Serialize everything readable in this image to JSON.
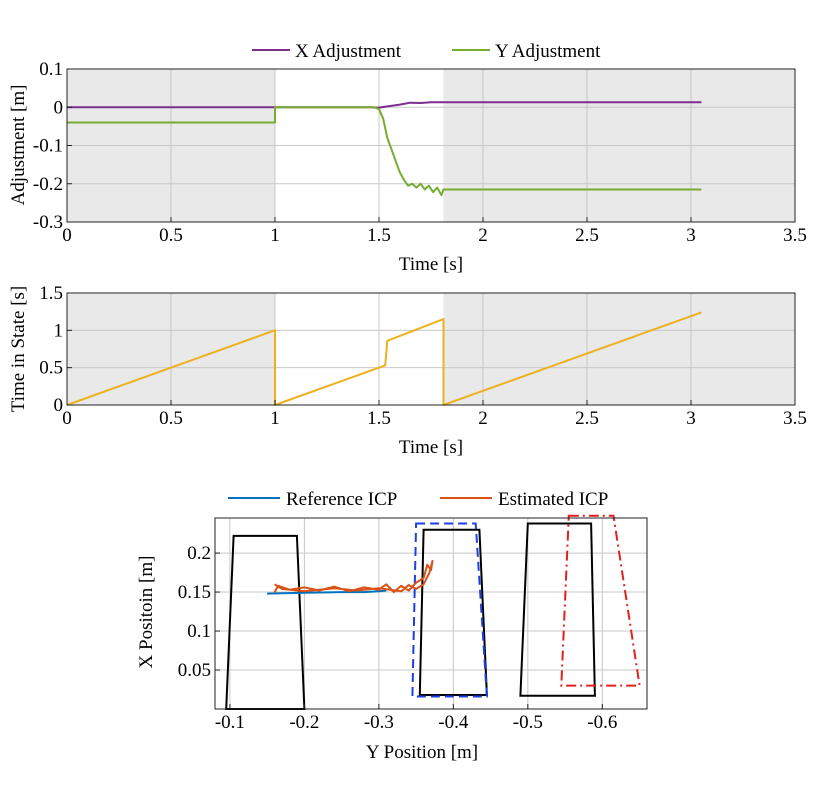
{
  "chart_data": [
    {
      "type": "line",
      "id": "adjustment",
      "xlabel": "Time [s]",
      "ylabel": "Adjustment [m]",
      "xlim": [
        0,
        3.5
      ],
      "ylim": [
        -0.3,
        0.1
      ],
      "xticks": [
        0,
        0.5,
        1,
        1.5,
        2,
        2.5,
        3,
        3.5
      ],
      "xtick_labels": [
        "0",
        "0.5",
        "1",
        "1.5",
        "2",
        "2.5",
        "3",
        "3.5"
      ],
      "yticks": [
        0.1,
        0,
        -0.1,
        -0.2,
        -0.3
      ],
      "ytick_labels": [
        "0.1",
        "0",
        "-0.1",
        "-0.2",
        "-0.3"
      ],
      "shaded_regions": [
        [
          0,
          1
        ],
        [
          1.81,
          3.5
        ]
      ],
      "shade_color": "#e9e9e9",
      "legend": [
        "X Adjustment",
        "Y Adjustment"
      ],
      "series": [
        {
          "name": "X Adjustment",
          "color": "#7e2f8e",
          "points": [
            [
              0,
              0
            ],
            [
              1,
              0
            ],
            [
              1,
              0
            ],
            [
              1.45,
              0
            ],
            [
              1.5,
              -0.001
            ],
            [
              1.55,
              0.003
            ],
            [
              1.6,
              0.007
            ],
            [
              1.65,
              0.012
            ],
            [
              1.7,
              0.011
            ],
            [
              1.75,
              0.013
            ],
            [
              1.81,
              0.013
            ],
            [
              3.05,
              0.013
            ]
          ]
        },
        {
          "name": "Y Adjustment",
          "color": "#77ac30",
          "points": [
            [
              0,
              -0.04
            ],
            [
              1,
              -0.04
            ],
            [
              1,
              0
            ],
            [
              1.48,
              0
            ],
            [
              1.5,
              -0.005
            ],
            [
              1.52,
              -0.03
            ],
            [
              1.54,
              -0.08
            ],
            [
              1.56,
              -0.11
            ],
            [
              1.58,
              -0.14
            ],
            [
              1.6,
              -0.17
            ],
            [
              1.62,
              -0.19
            ],
            [
              1.64,
              -0.205
            ],
            [
              1.66,
              -0.2
            ],
            [
              1.68,
              -0.21
            ],
            [
              1.7,
              -0.2
            ],
            [
              1.72,
              -0.215
            ],
            [
              1.74,
              -0.205
            ],
            [
              1.76,
              -0.222
            ],
            [
              1.78,
              -0.21
            ],
            [
              1.8,
              -0.23
            ],
            [
              1.81,
              -0.215
            ],
            [
              3.05,
              -0.215
            ]
          ]
        }
      ]
    },
    {
      "type": "line",
      "id": "time-in-state",
      "xlabel": "Time [s]",
      "ylabel": "Time in State [s]",
      "xlim": [
        0,
        3.5
      ],
      "ylim": [
        0,
        1.5
      ],
      "xticks": [
        0,
        0.5,
        1,
        1.5,
        2,
        2.5,
        3,
        3.5
      ],
      "xtick_labels": [
        "0",
        "0.5",
        "1",
        "1.5",
        "2",
        "2.5",
        "3",
        "3.5"
      ],
      "yticks": [
        1.5,
        1,
        0.5,
        0
      ],
      "ytick_labels": [
        "1.5",
        "1",
        "0.5",
        "0"
      ],
      "shaded_regions": [
        [
          0,
          1
        ],
        [
          1.81,
          3.5
        ]
      ],
      "shade_color": "#e9e9e9",
      "series": [
        {
          "name": "Time in State",
          "color": "#edb120",
          "points": [
            [
              0,
              0
            ],
            [
              1,
              1
            ],
            [
              1,
              0
            ],
            [
              1.53,
              0.53
            ],
            [
              1.54,
              0.86
            ],
            [
              1.81,
              1.15
            ],
            [
              1.81,
              0
            ],
            [
              3.05,
              1.24
            ]
          ]
        }
      ]
    },
    {
      "type": "line",
      "id": "icp-trajectory",
      "xlabel": "Y Position [m]",
      "ylabel": "X Positoin [m]",
      "xlim": [
        -0.08,
        -0.66
      ],
      "ylim": [
        0,
        0.245
      ],
      "xticks": [
        -0.1,
        -0.2,
        -0.3,
        -0.4,
        -0.5,
        -0.6
      ],
      "xtick_labels": [
        "-0.1",
        "-0.2",
        "-0.3",
        "-0.4",
        "-0.5",
        "-0.6"
      ],
      "yticks": [
        0.2,
        0.15,
        0.1,
        0.05
      ],
      "ytick_labels": [
        "0.2",
        "0.15",
        "0.1",
        "0.05"
      ],
      "legend": [
        "Reference ICP",
        "Estimated ICP"
      ],
      "series": [
        {
          "name": "Reference ICP",
          "color": "#0072bd",
          "points": [
            [
              -0.15,
              0.148
            ],
            [
              -0.2,
              0.149
            ],
            [
              -0.25,
              0.15
            ],
            [
              -0.28,
              0.15
            ],
            [
              -0.3,
              0.151
            ],
            [
              -0.31,
              0.152
            ]
          ]
        },
        {
          "name": "Estimated ICP",
          "color": "#d95319",
          "points": [
            [
              -0.16,
              0.15
            ],
            [
              -0.165,
              0.158
            ],
            [
              -0.18,
              0.153
            ],
            [
              -0.2,
              0.156
            ],
            [
              -0.22,
              0.152
            ],
            [
              -0.24,
              0.157
            ],
            [
              -0.26,
              0.151
            ],
            [
              -0.28,
              0.156
            ],
            [
              -0.3,
              0.153
            ],
            [
              -0.31,
              0.16
            ],
            [
              -0.32,
              0.15
            ],
            [
              -0.33,
              0.158
            ],
            [
              -0.34,
              0.152
            ],
            [
              -0.35,
              0.162
            ],
            [
              -0.36,
              0.168
            ],
            [
              -0.365,
              0.185
            ],
            [
              -0.37,
              0.178
            ],
            [
              -0.372,
              0.19
            ],
            [
              -0.368,
              0.175
            ],
            [
              -0.36,
              0.16
            ],
            [
              -0.35,
              0.154
            ],
            [
              -0.34,
              0.159
            ],
            [
              -0.33,
              0.151
            ],
            [
              -0.3,
              0.155
            ],
            [
              -0.27,
              0.152
            ],
            [
              -0.24,
              0.155
            ],
            [
              -0.2,
              0.151
            ],
            [
              -0.17,
              0.154
            ],
            [
              -0.16,
              0.16
            ]
          ]
        }
      ],
      "shapes": [
        {
          "name": "footprint-1",
          "style": "solid",
          "color": "#000000",
          "points": [
            [
              -0.105,
              0.222
            ],
            [
              -0.19,
              0.222
            ],
            [
              -0.2,
              0.0
            ],
            [
              -0.095,
              0.0
            ]
          ]
        },
        {
          "name": "footprint-2",
          "style": "solid",
          "color": "#000000",
          "points": [
            [
              -0.36,
              0.23
            ],
            [
              -0.435,
              0.23
            ],
            [
              -0.445,
              0.018
            ],
            [
              -0.355,
              0.018
            ]
          ]
        },
        {
          "name": "footprint-3",
          "style": "solid",
          "color": "#000000",
          "points": [
            [
              -0.5,
              0.238
            ],
            [
              -0.585,
              0.238
            ],
            [
              -0.59,
              0.017
            ],
            [
              -0.49,
              0.017
            ]
          ]
        },
        {
          "name": "support-region-blue",
          "style": "dashed",
          "color": "#1f3fe0",
          "points": [
            [
              -0.35,
              0.238
            ],
            [
              -0.43,
              0.238
            ],
            [
              -0.445,
              0.016
            ],
            [
              -0.345,
              0.016
            ]
          ]
        },
        {
          "name": "support-region-red",
          "style": "dashdot",
          "color": "#e0201f",
          "points": [
            [
              -0.555,
              0.248
            ],
            [
              -0.615,
              0.248
            ],
            [
              -0.65,
              0.03
            ],
            [
              -0.545,
              0.03
            ]
          ]
        }
      ]
    }
  ]
}
